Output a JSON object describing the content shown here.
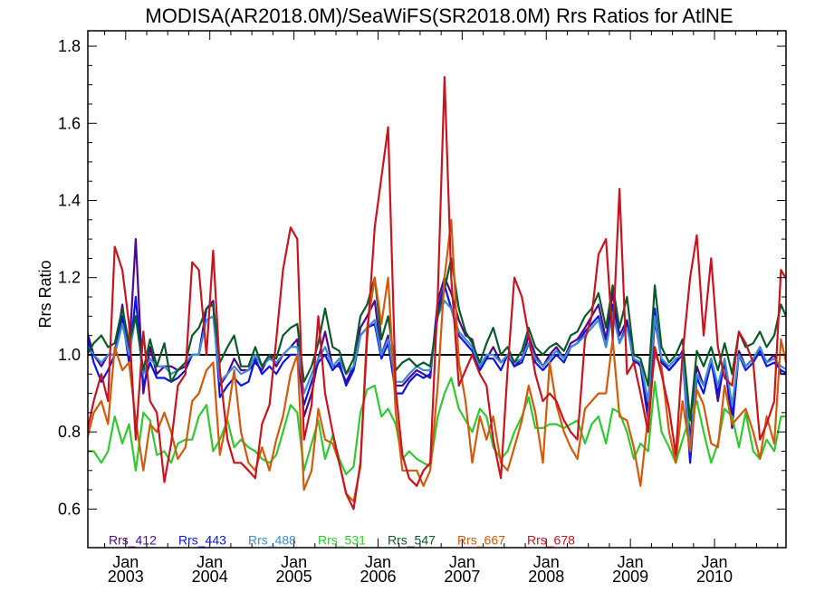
{
  "chart_data": {
    "type": "line",
    "title": "MODISA(AR2018.0M)/SeaWiFS(SR2018.0M)  Rrs Ratios for AtlNE",
    "xlabel": "",
    "ylabel": "Rrs Ratio",
    "ylim": [
      0.5,
      1.84
    ],
    "yticks": [
      0.6,
      0.8,
      1.0,
      1.2,
      1.4,
      1.6,
      1.8
    ],
    "ytick_labels": [
      "0.6",
      "0.8",
      "1.0",
      "1.2",
      "1.4",
      "1.6",
      "1.8"
    ],
    "xlim": [
      2002.55,
      2010.85
    ],
    "xticks": [
      2003.0,
      2004.0,
      2005.0,
      2006.0,
      2007.0,
      2008.0,
      2009.0,
      2010.0
    ],
    "xtick_labels": [
      [
        "Jan",
        "2003"
      ],
      [
        "Jan",
        "2004"
      ],
      [
        "Jan",
        "2005"
      ],
      [
        "Jan",
        "2006"
      ],
      [
        "Jan",
        "2007"
      ],
      [
        "Jan",
        "2008"
      ],
      [
        "Jan",
        "2009"
      ],
      [
        "Jan",
        "2010"
      ]
    ],
    "reference_line": 1.0,
    "grid": false,
    "legend_position": "bottom",
    "x": [
      2002.54,
      2002.62,
      2002.71,
      2002.79,
      2002.87,
      2002.96,
      2003.04,
      2003.12,
      2003.21,
      2003.29,
      2003.37,
      2003.46,
      2003.54,
      2003.62,
      2003.71,
      2003.79,
      2003.87,
      2003.96,
      2004.04,
      2004.12,
      2004.21,
      2004.29,
      2004.37,
      2004.46,
      2004.54,
      2004.62,
      2004.71,
      2004.79,
      2004.87,
      2004.96,
      2005.04,
      2005.12,
      2005.21,
      2005.29,
      2005.37,
      2005.46,
      2005.54,
      2005.62,
      2005.71,
      2005.79,
      2005.87,
      2005.96,
      2006.04,
      2006.12,
      2006.21,
      2006.29,
      2006.37,
      2006.46,
      2006.54,
      2006.62,
      2006.71,
      2006.79,
      2006.87,
      2006.96,
      2007.04,
      2007.12,
      2007.21,
      2007.29,
      2007.37,
      2007.46,
      2007.54,
      2007.62,
      2007.71,
      2007.79,
      2007.87,
      2007.96,
      2008.04,
      2008.12,
      2008.21,
      2008.29,
      2008.37,
      2008.46,
      2008.54,
      2008.62,
      2008.71,
      2008.79,
      2008.87,
      2008.96,
      2009.04,
      2009.12,
      2009.21,
      2009.29,
      2009.37,
      2009.46,
      2009.54,
      2009.62,
      2009.71,
      2009.79,
      2009.87,
      2009.96,
      2010.04,
      2010.12,
      2010.21,
      2010.29,
      2010.37,
      2010.46,
      2010.54,
      2010.62,
      2010.71,
      2010.79,
      2010.87
    ],
    "series": [
      {
        "name": "Rrs_412",
        "color": "#4b0a8c",
        "values": [
          1.06,
          1.0,
          0.97,
          1.0,
          1.0,
          1.13,
          1.0,
          1.3,
          0.9,
          1.02,
          0.95,
          0.97,
          0.97,
          0.96,
          0.97,
          1.0,
          1.0,
          1.12,
          1.14,
          0.92,
          0.95,
          0.99,
          0.96,
          0.96,
          0.98,
          0.96,
          1.0,
          0.97,
          1.0,
          1.02,
          1.04,
          0.84,
          0.9,
          0.99,
          1.06,
          0.97,
          0.97,
          0.93,
          0.97,
          1.07,
          1.1,
          1.14,
          1.0,
          1.05,
          0.92,
          0.92,
          0.94,
          0.96,
          0.95,
          0.94,
          1.14,
          1.2,
          1.16,
          1.09,
          1.05,
          1.04,
          0.96,
          0.99,
          1.02,
          0.98,
          1.0,
          0.97,
          0.99,
          1.05,
          1.0,
          0.97,
          1.0,
          1.02,
          0.99,
          1.03,
          1.04,
          1.07,
          1.1,
          1.13,
          1.04,
          1.16,
          1.05,
          1.09,
          0.99,
          0.97,
          0.83,
          1.09,
          0.99,
          0.96,
          0.98,
          1.01,
          0.78,
          0.97,
          0.92,
          0.99,
          0.88,
          0.99,
          0.81,
          1.01,
          0.97,
          0.99,
          1.02,
          0.98,
          1.0,
          0.95,
          0.95
        ]
      },
      {
        "name": "Rrs_443",
        "color": "#0a14e6",
        "values": [
          1.05,
          0.98,
          0.93,
          0.96,
          1.0,
          1.1,
          0.98,
          1.15,
          0.92,
          0.98,
          0.94,
          0.94,
          0.93,
          0.94,
          0.96,
          1.0,
          1.0,
          1.12,
          1.13,
          0.89,
          0.92,
          0.94,
          0.92,
          0.93,
          0.99,
          0.95,
          0.97,
          0.95,
          0.98,
          1.0,
          1.0,
          0.87,
          0.93,
          0.98,
          1.0,
          0.96,
          0.98,
          0.92,
          0.96,
          1.05,
          1.07,
          1.08,
          0.99,
          1.03,
          0.9,
          0.9,
          0.93,
          0.95,
          0.94,
          0.95,
          1.12,
          1.18,
          1.12,
          1.05,
          1.03,
          1.01,
          0.96,
          0.99,
          0.99,
          0.96,
          1.0,
          0.97,
          0.98,
          1.03,
          0.98,
          0.96,
          0.98,
          1.0,
          0.98,
          1.02,
          1.03,
          1.06,
          1.08,
          1.1,
          1.02,
          1.13,
          1.03,
          1.08,
          0.98,
          0.98,
          0.85,
          1.12,
          0.98,
          0.96,
          0.98,
          1.0,
          0.72,
          0.94,
          0.9,
          0.98,
          0.9,
          0.98,
          0.84,
          1.0,
          0.96,
          0.98,
          1.01,
          0.97,
          0.98,
          0.96,
          0.95
        ]
      },
      {
        "name": "Rrs_488",
        "color": "#3c8cd2",
        "values": [
          1.02,
          1.0,
          0.98,
          1.0,
          1.0,
          1.08,
          1.0,
          1.1,
          0.95,
          0.99,
          0.97,
          0.97,
          0.95,
          0.96,
          0.98,
          1.0,
          1.0,
          1.09,
          1.1,
          0.93,
          0.95,
          0.97,
          0.95,
          0.96,
          1.0,
          0.97,
          0.99,
          0.98,
          1.0,
          1.02,
          1.02,
          0.9,
          0.95,
          0.99,
          1.02,
          0.97,
          0.99,
          0.95,
          0.97,
          1.05,
          1.07,
          1.09,
          1.0,
          1.04,
          0.93,
          0.93,
          0.95,
          0.97,
          0.96,
          0.96,
          1.1,
          1.14,
          1.12,
          1.06,
          1.04,
          1.02,
          0.97,
          1.0,
          1.0,
          0.98,
          1.0,
          0.98,
          0.99,
          1.03,
          0.99,
          0.97,
          0.99,
          1.01,
          0.99,
          1.02,
          1.03,
          1.05,
          1.07,
          1.09,
          1.02,
          1.11,
          1.03,
          1.07,
          0.99,
          0.98,
          0.88,
          1.1,
          0.99,
          0.97,
          0.99,
          1.0,
          0.75,
          0.95,
          0.92,
          0.99,
          0.92,
          0.99,
          0.87,
          1.0,
          0.97,
          0.99,
          1.02,
          0.98,
          0.99,
          0.97,
          0.96
        ]
      },
      {
        "name": "Rrs_531",
        "color": "#32c832",
        "values": [
          0.75,
          0.75,
          0.72,
          0.75,
          0.84,
          0.77,
          0.82,
          0.7,
          0.85,
          0.83,
          0.74,
          0.75,
          0.72,
          0.77,
          0.78,
          0.78,
          0.84,
          0.87,
          0.75,
          0.78,
          0.83,
          0.76,
          0.78,
          0.76,
          0.75,
          0.73,
          0.72,
          0.74,
          0.8,
          0.87,
          0.85,
          0.7,
          0.77,
          0.83,
          0.73,
          0.79,
          0.73,
          0.69,
          0.71,
          0.85,
          0.91,
          0.92,
          0.84,
          0.86,
          0.82,
          0.73,
          0.75,
          0.73,
          0.72,
          0.71,
          0.84,
          0.9,
          0.94,
          0.86,
          0.83,
          0.8,
          0.86,
          0.84,
          0.76,
          0.73,
          0.75,
          0.8,
          0.84,
          0.89,
          0.81,
          0.81,
          0.82,
          0.82,
          0.81,
          0.82,
          0.83,
          0.77,
          0.82,
          0.84,
          0.77,
          0.86,
          0.85,
          0.8,
          0.73,
          0.77,
          0.75,
          0.93,
          0.8,
          0.76,
          0.72,
          0.78,
          0.84,
          0.88,
          0.8,
          0.72,
          0.77,
          0.86,
          0.84,
          0.76,
          0.85,
          0.75,
          0.73,
          0.78,
          0.75,
          0.84,
          0.84
        ]
      },
      {
        "name": "Rrs_547",
        "color": "#0a5a28",
        "values": [
          1.0,
          1.03,
          1.05,
          1.02,
          1.03,
          1.12,
          1.03,
          1.1,
          0.96,
          1.04,
          0.97,
          1.03,
          0.93,
          0.96,
          0.98,
          1.05,
          1.07,
          1.12,
          1.13,
          0.98,
          1.02,
          1.05,
          0.97,
          0.97,
          1.02,
          0.97,
          1.0,
          0.99,
          1.05,
          1.07,
          1.08,
          0.93,
          0.97,
          1.03,
          1.12,
          1.02,
          1.01,
          0.95,
          0.99,
          1.1,
          1.13,
          1.2,
          1.04,
          1.1,
          0.96,
          0.98,
          0.99,
          0.97,
          0.98,
          0.97,
          1.1,
          1.17,
          1.25,
          1.12,
          1.06,
          1.03,
          0.98,
          1.03,
          1.07,
          1.0,
          1.02,
          0.98,
          1.01,
          1.07,
          1.02,
          1.0,
          1.02,
          1.03,
          1.01,
          1.05,
          1.06,
          1.1,
          1.12,
          1.16,
          1.07,
          1.18,
          1.07,
          1.15,
          1.0,
          0.99,
          0.92,
          1.18,
          1.02,
          0.98,
          1.0,
          1.04,
          0.83,
          1.01,
          0.97,
          1.02,
          0.96,
          1.03,
          0.95,
          1.06,
          1.02,
          1.03,
          1.06,
          1.02,
          1.05,
          1.13,
          1.09
        ]
      },
      {
        "name": "Rrs_667",
        "color": "#d25a0a",
        "values": [
          0.78,
          0.85,
          0.88,
          0.82,
          1.02,
          0.96,
          0.98,
          0.83,
          0.7,
          0.82,
          0.8,
          0.85,
          0.8,
          0.73,
          0.76,
          0.88,
          0.9,
          0.96,
          0.98,
          0.74,
          0.84,
          0.96,
          0.8,
          0.72,
          0.7,
          0.76,
          0.7,
          0.78,
          0.84,
          0.95,
          1.0,
          0.65,
          0.7,
          0.86,
          0.78,
          0.77,
          0.72,
          0.64,
          0.62,
          0.71,
          1.07,
          1.2,
          1.08,
          1.2,
          0.85,
          0.7,
          0.7,
          0.7,
          0.66,
          0.7,
          0.92,
          1.2,
          1.35,
          0.98,
          0.88,
          0.72,
          0.84,
          0.78,
          0.84,
          0.72,
          0.7,
          0.76,
          0.83,
          0.92,
          0.85,
          0.72,
          0.98,
          0.87,
          0.8,
          0.76,
          0.73,
          0.86,
          0.88,
          0.9,
          0.9,
          1.04,
          0.84,
          0.83,
          0.76,
          0.66,
          0.84,
          1.0,
          0.97,
          0.8,
          0.72,
          0.88,
          0.75,
          0.91,
          0.87,
          0.77,
          0.76,
          0.92,
          0.82,
          0.84,
          0.86,
          0.8,
          0.73,
          0.84,
          0.77,
          1.04,
          0.96
        ]
      },
      {
        "name": "Rrs_678",
        "color": "#c8141e",
        "values": [
          0.8,
          0.88,
          0.95,
          0.88,
          1.28,
          1.22,
          1.08,
          0.78,
          1.06,
          0.88,
          0.85,
          0.67,
          0.77,
          0.92,
          0.95,
          1.24,
          1.22,
          1.0,
          1.27,
          0.96,
          0.78,
          0.72,
          0.72,
          0.7,
          0.68,
          0.82,
          0.87,
          1.04,
          1.22,
          1.33,
          1.3,
          0.78,
          0.87,
          1.1,
          0.9,
          0.8,
          0.72,
          0.64,
          0.6,
          0.72,
          1.04,
          1.33,
          1.46,
          1.59,
          0.91,
          0.74,
          0.68,
          0.66,
          0.7,
          0.72,
          1.15,
          1.72,
          1.2,
          0.92,
          0.96,
          1.0,
          0.95,
          0.92,
          0.78,
          0.68,
          0.96,
          1.2,
          1.15,
          1.05,
          0.95,
          0.88,
          0.9,
          0.88,
          0.83,
          0.8,
          0.78,
          1.04,
          1.1,
          1.26,
          1.3,
          1.04,
          1.43,
          0.95,
          0.98,
          0.9,
          0.8,
          1.02,
          0.95,
          0.86,
          0.74,
          1.0,
          1.2,
          1.31,
          1.05,
          1.25,
          1.02,
          0.94,
          0.92,
          1.06,
          1.03,
          0.98,
          0.78,
          0.82,
          0.88,
          1.22,
          1.19
        ]
      }
    ]
  }
}
